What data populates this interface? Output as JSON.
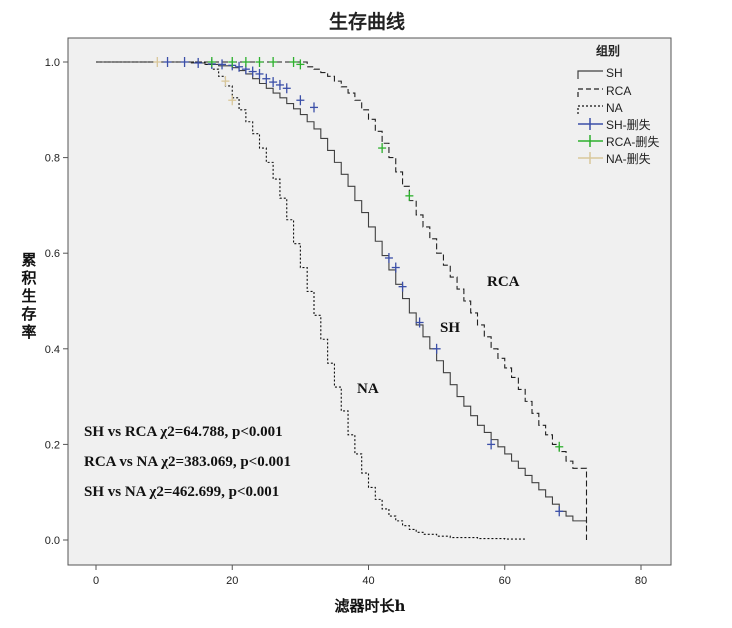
{
  "chart_data": {
    "type": "line",
    "title": "生存曲线",
    "xlabel": "滤器时长h",
    "ylabel": "累积生存率",
    "xlim": [
      0,
      80
    ],
    "ylim": [
      0.0,
      1.0
    ],
    "x_ticks": [
      "0",
      "20",
      "40",
      "60",
      "80"
    ],
    "y_ticks": [
      "0.0",
      "0.2",
      "0.4",
      "0.6",
      "0.8",
      "1.0"
    ],
    "grid": false,
    "legend": {
      "title": "组别",
      "placement": "top-right",
      "entries": [
        "SH",
        "RCA",
        "NA",
        "SH-删失",
        "RCA-删失",
        "NA-删失"
      ]
    },
    "series": [
      {
        "name": "SH",
        "label": "SH",
        "color": "#404040",
        "dash": "solid",
        "x": [
          0,
          14,
          16,
          18,
          20,
          21,
          22,
          23,
          24,
          25,
          26,
          27,
          28,
          29,
          30,
          31,
          32,
          33,
          34,
          35,
          36,
          37,
          38,
          39,
          40,
          41,
          42,
          43,
          44,
          45,
          46,
          47,
          48,
          49,
          50,
          51,
          52,
          53,
          54,
          55,
          56,
          57,
          58,
          59,
          60,
          61,
          62,
          63,
          64,
          65,
          66,
          67,
          68,
          69,
          70,
          72
        ],
        "values": [
          1.0,
          0.998,
          0.995,
          0.992,
          0.988,
          0.982,
          0.975,
          0.965,
          0.955,
          0.945,
          0.935,
          0.925,
          0.913,
          0.902,
          0.89,
          0.875,
          0.86,
          0.84,
          0.815,
          0.79,
          0.765,
          0.74,
          0.71,
          0.685,
          0.655,
          0.625,
          0.595,
          0.565,
          0.535,
          0.505,
          0.475,
          0.45,
          0.425,
          0.4,
          0.375,
          0.35,
          0.325,
          0.3,
          0.28,
          0.26,
          0.24,
          0.225,
          0.21,
          0.195,
          0.18,
          0.165,
          0.15,
          0.135,
          0.12,
          0.105,
          0.09,
          0.075,
          0.06,
          0.05,
          0.04,
          0.035
        ],
        "censored_x": [
          10.5,
          13,
          15,
          17,
          18.5,
          20,
          21,
          22,
          23,
          24,
          25,
          26,
          27,
          28,
          30,
          32,
          43,
          44,
          45,
          47.5,
          50,
          58,
          68
        ],
        "censored_y": [
          1.0,
          1.0,
          0.998,
          0.996,
          0.995,
          0.993,
          0.99,
          0.985,
          0.98,
          0.975,
          0.965,
          0.958,
          0.952,
          0.945,
          0.92,
          0.905,
          0.59,
          0.57,
          0.53,
          0.455,
          0.4,
          0.2,
          0.06
        ]
      },
      {
        "name": "RCA",
        "label": "RCA",
        "color": "#202020",
        "dash": "6,3",
        "x": [
          0,
          31,
          32,
          33,
          34,
          35,
          36,
          37,
          38,
          39,
          40,
          41,
          42,
          43,
          44,
          45,
          46,
          47,
          48,
          49,
          50,
          51,
          52,
          53,
          54,
          55,
          56,
          57,
          58,
          59,
          60,
          61,
          62,
          63,
          64,
          65,
          66,
          67,
          68,
          69,
          70,
          71,
          72
        ],
        "values": [
          1.0,
          0.99,
          0.985,
          0.978,
          0.97,
          0.96,
          0.948,
          0.935,
          0.92,
          0.9,
          0.88,
          0.855,
          0.83,
          0.8,
          0.77,
          0.74,
          0.71,
          0.68,
          0.655,
          0.63,
          0.6,
          0.575,
          0.55,
          0.525,
          0.5,
          0.475,
          0.45,
          0.425,
          0.4,
          0.38,
          0.36,
          0.34,
          0.315,
          0.29,
          0.265,
          0.24,
          0.22,
          0.2,
          0.185,
          0.165,
          0.15,
          0.15,
          0.0
        ],
        "censored_x": [
          17,
          20,
          22,
          24,
          26,
          29,
          30,
          42,
          46,
          68
        ],
        "censored_y": [
          1.0,
          1.0,
          1.0,
          1.0,
          1.0,
          1.0,
          0.995,
          0.82,
          0.72,
          0.195
        ]
      },
      {
        "name": "NA",
        "label": "NA",
        "color": "#101010",
        "dash": "2,2",
        "x": [
          0,
          16,
          17,
          18,
          19,
          20,
          21,
          22,
          23,
          24,
          25,
          26,
          27,
          28,
          29,
          30,
          31,
          32,
          33,
          34,
          35,
          36,
          37,
          38,
          39,
          40,
          41,
          42,
          43,
          44,
          45,
          46,
          47,
          48,
          50,
          52,
          56,
          60,
          63
        ],
        "values": [
          1.0,
          0.995,
          0.985,
          0.97,
          0.95,
          0.925,
          0.9,
          0.875,
          0.85,
          0.82,
          0.79,
          0.755,
          0.715,
          0.67,
          0.62,
          0.57,
          0.52,
          0.47,
          0.42,
          0.37,
          0.32,
          0.27,
          0.22,
          0.18,
          0.14,
          0.11,
          0.085,
          0.065,
          0.05,
          0.04,
          0.03,
          0.022,
          0.016,
          0.012,
          0.008,
          0.005,
          0.003,
          0.002,
          0.002
        ],
        "censored_x": [
          9,
          19,
          20
        ],
        "censored_y": [
          1.0,
          0.96,
          0.92
        ]
      }
    ],
    "annotations": [
      "SH vs RCA χ2=64.788, p<0.001",
      "RCA vs NA χ2=383.069, p<0.001",
      "SH vs NA χ2=462.699, p<0.001"
    ],
    "censor_colors": {
      "SH": "#3b4fa8",
      "RCA": "#2db02d",
      "NA": "#d9c79a"
    },
    "plot_background": "#f0f0f0"
  }
}
